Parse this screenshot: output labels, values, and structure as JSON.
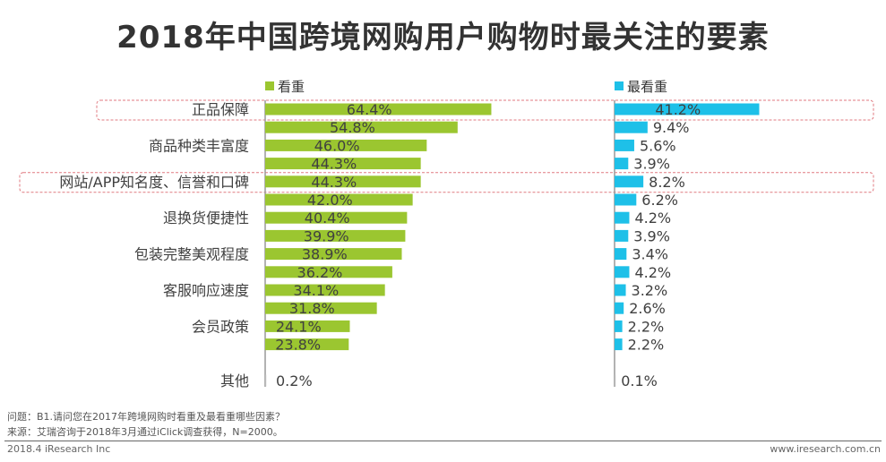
{
  "chart_data": {
    "type": "bar",
    "orientation": "horizontal",
    "title": "2018年中国跨境网购用户购物时最关注的要素",
    "categories": [
      "正品保障",
      "",
      "商品种类丰富度",
      "",
      "网站/APP知名度、信誉和口碑",
      "",
      "退换货便捷性",
      "",
      "包装完整美观程度",
      "",
      "客服响应速度",
      "",
      "会员政策",
      "",
      "",
      "其他"
    ],
    "series": [
      {
        "name": "看重",
        "color": "#9bc630",
        "values": [
          64.4,
          54.8,
          46.0,
          44.3,
          44.3,
          42.0,
          40.4,
          39.9,
          38.9,
          36.2,
          34.1,
          31.8,
          24.1,
          23.8,
          null,
          0.2
        ]
      },
      {
        "name": "最看重",
        "color": "#1ec0e8",
        "values": [
          41.2,
          9.4,
          5.6,
          3.9,
          8.2,
          6.2,
          4.2,
          3.9,
          3.4,
          4.2,
          3.2,
          2.6,
          2.2,
          2.2,
          null,
          0.1
        ]
      }
    ],
    "value_suffix": "%",
    "highlighted_categories": [
      "正品保障",
      "网站/APP知名度、信誉和口碑"
    ],
    "legend": "top",
    "grid": false
  },
  "footer": {
    "question": "问题：B1.请问您在2017年跨境网购时看重及最看重哪些因素？",
    "source": "来源：艾瑞咨询于2018年3月通过iClick调查获得，N=2000。",
    "brand": "2018.4 iResearch Inc",
    "site": "www.iresearch.com.cn"
  }
}
